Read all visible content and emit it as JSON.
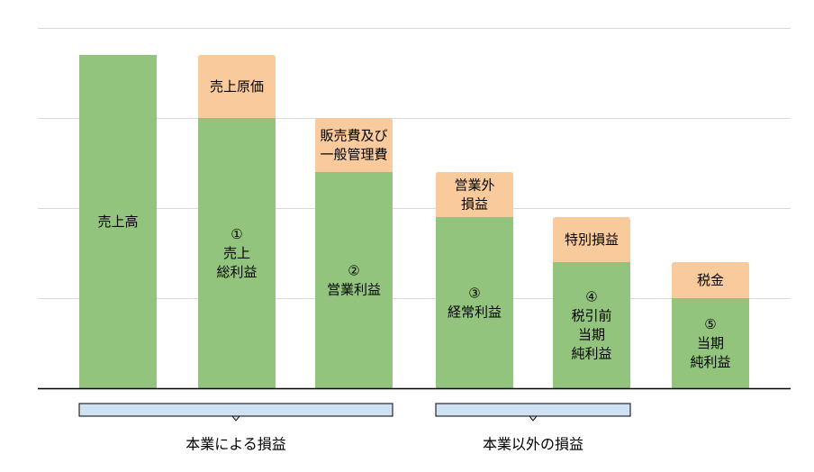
{
  "chart_data": {
    "type": "bar",
    "subtype": "waterfall",
    "stacked": true,
    "ylim": [
      0,
      4
    ],
    "grid": true,
    "colors": {
      "profit": "#93c47d",
      "cost": "#f9cb9c",
      "bracket_fill": "#cfe2f3",
      "grid": "#d9d9d9",
      "axis": "#000000"
    },
    "categories": [
      "売上高",
      "①売上総利益",
      "②営業利益",
      "③経常利益",
      "④税引前当期純利益",
      "⑤当期純利益"
    ],
    "series": [
      {
        "role": "profit",
        "values": [
          3.7,
          3.0,
          2.4,
          1.9,
          1.4,
          1.0
        ],
        "labels": [
          [
            "売上高"
          ],
          [
            "①",
            "売上",
            "総利益"
          ],
          [
            "②",
            "営業利益"
          ],
          [
            "③",
            "経常利益"
          ],
          [
            "④",
            "税引前",
            "当期",
            "純利益"
          ],
          [
            "⑤",
            "当期",
            "純利益"
          ]
        ]
      },
      {
        "role": "cost",
        "values": [
          0,
          0.7,
          0.6,
          0.5,
          0.5,
          0.4
        ],
        "labels": [
          [],
          [
            "売上原価"
          ],
          [
            "販売費及び",
            "一般管理費"
          ],
          [
            "営業外",
            "損益"
          ],
          [
            "特別損益"
          ],
          [
            "税金"
          ]
        ]
      }
    ],
    "groups": [
      {
        "label": "本業による損益",
        "from": 0,
        "to": 2
      },
      {
        "label": "本業以外の損益",
        "from": 3,
        "to": 4
      }
    ]
  }
}
